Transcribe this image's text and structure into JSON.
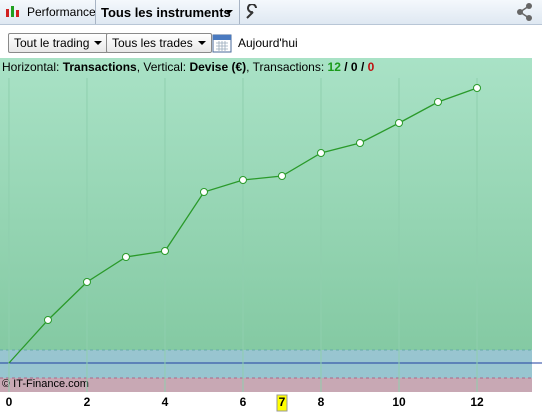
{
  "toolbar": {
    "tab": "Performance",
    "instruments": "Tous les instruments"
  },
  "filters": {
    "trading": "Tout le trading",
    "trades": "Tous les trades",
    "date": "Aujourd'hui"
  },
  "info": {
    "h_label": "Horizontal:",
    "h_value": "Transactions",
    "v_label": ", Vertical:",
    "v_value": "Devise (€)",
    "t_label": ", Transactions:",
    "separator": "/",
    "counts": [
      {
        "value": 12,
        "color": "#1a9a1a"
      },
      {
        "value": 0,
        "color": "#000000"
      },
      {
        "value": 0,
        "color": "#c01010"
      }
    ]
  },
  "chart_data": {
    "type": "line",
    "x": [
      0,
      1,
      2,
      3,
      4,
      5,
      6,
      7,
      8,
      9,
      10,
      11,
      12
    ],
    "values": [
      0,
      43,
      81,
      106,
      112,
      171,
      183,
      187,
      210,
      220,
      240,
      261,
      275
    ],
    "color": "#2a9a2a",
    "xlim": [
      -0.23,
      13.41
    ],
    "ylim": [
      -29,
      305
    ],
    "xticks": [
      0,
      2,
      4,
      6,
      8,
      10,
      12
    ],
    "cursor": 7,
    "band": [
      -15,
      13
    ],
    "watermark": "© IT-Finance.com"
  }
}
